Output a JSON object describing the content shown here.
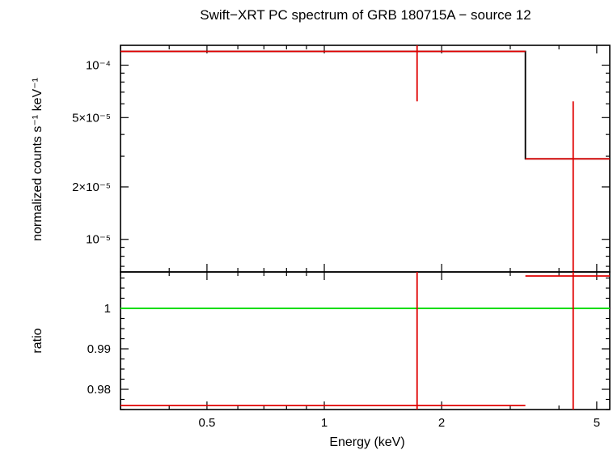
{
  "chart_data": {
    "title": "Swift−XRT PC spectrum of GRB 180715A − source 12",
    "x_axis": {
      "label": "Energy (keV)",
      "scale": "log",
      "range": [
        0.3,
        5.4
      ],
      "tick_labels": [
        {
          "value": 0.5,
          "label": "0.5"
        },
        {
          "value": 1,
          "label": "1"
        },
        {
          "value": 2,
          "label": "2"
        },
        {
          "value": 5,
          "label": "5"
        }
      ]
    },
    "panels": [
      {
        "id": "spectrum",
        "type": "step",
        "ylabel": "normalized counts s⁻¹ keV⁻¹",
        "yscale": "log",
        "ylim": [
          6.5e-06,
          0.00013
        ],
        "ytick_labels": [
          {
            "value": 1e-05,
            "label": "10⁻⁵"
          },
          {
            "value": 2e-05,
            "label": "2×10⁻⁵"
          },
          {
            "value": 5e-05,
            "label": "5×10⁻⁵"
          },
          {
            "value": 0.0001,
            "label": "10⁻⁴"
          }
        ],
        "series": [
          {
            "role": "data",
            "color": "#e00000",
            "points": [
              {
                "x": 1.73,
                "xlo": 0.3,
                "xhi": 3.28,
                "y": 0.00012,
                "ylo": 6.2e-05,
                "yhi": 0.00013
              },
              {
                "x": 4.35,
                "xlo": 3.28,
                "xhi": 5.4,
                "y": 2.9e-05,
                "ylo": 6.5e-06,
                "yhi": 6.2e-05
              }
            ]
          },
          {
            "role": "model",
            "color": "#000000",
            "bins": [
              {
                "xlo": 0.3,
                "xhi": 3.28,
                "y": 0.00012
              },
              {
                "xlo": 3.28,
                "xhi": 5.4,
                "y": 2.9e-05
              }
            ]
          }
        ]
      },
      {
        "id": "ratio",
        "type": "errorbar",
        "ylabel": "ratio",
        "yscale": "linear",
        "ylim": [
          0.975,
          1.009
        ],
        "ytick_labels": [
          {
            "value": 0.98,
            "label": "0.98"
          },
          {
            "value": 0.99,
            "label": "0.99"
          },
          {
            "value": 1,
            "label": "1"
          }
        ],
        "reference_line": {
          "y": 1,
          "color": "#00dd00"
        },
        "series": [
          {
            "role": "data",
            "color": "#e00000",
            "points": [
              {
                "x": 1.73,
                "xlo": 0.3,
                "xhi": 3.28,
                "y": 0.976,
                "ylo": 0.975,
                "yhi": 1.009
              },
              {
                "x": 4.35,
                "xlo": 3.28,
                "xhi": 5.4,
                "y": 1.008,
                "ylo": 0.975,
                "yhi": 1.009
              }
            ]
          }
        ]
      }
    ]
  }
}
